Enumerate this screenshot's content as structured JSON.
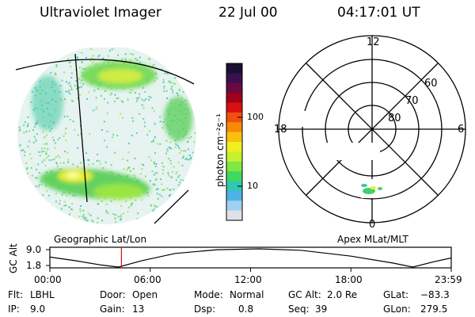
{
  "header": {
    "instrument": "Ultraviolet Imager",
    "date": "22 Jul 00",
    "time": "04:17:01 UT"
  },
  "colorbar": {
    "label": "photon cm⁻²s⁻¹",
    "ticks": [
      "100",
      "10"
    ],
    "colors": [
      "#1a1030",
      "#3a1050",
      "#6a0a40",
      "#a0001a",
      "#d81010",
      "#f05010",
      "#f88a08",
      "#f8c010",
      "#f0f020",
      "#c8f030",
      "#80e840",
      "#40d860",
      "#30c8b0",
      "#50b0e8",
      "#a0d0f0",
      "#e0e0e8"
    ]
  },
  "left_panel": {
    "caption": "Geographic Lat/Lon"
  },
  "right_panel": {
    "caption": "Apex MLat/MLT",
    "mlt_labels": {
      "top": "12",
      "left": "18",
      "right": "6",
      "bottom": "0"
    },
    "lat_labels": [
      "60",
      "70",
      "80"
    ]
  },
  "timeline": {
    "ylabel": "GC Alt",
    "y_ticks": [
      "9.0",
      "1.8"
    ],
    "x_ticks": [
      "00:00",
      "06:00",
      "12:00",
      "18:00",
      "23:59"
    ],
    "current_time_hours": 4.28
  },
  "stats": {
    "filter": {
      "label": "Flt:",
      "value": "LBHL"
    },
    "ip": {
      "label": "IP:",
      "value": "9.0"
    },
    "door": {
      "label": "Door:",
      "value": "Open"
    },
    "gain": {
      "label": "Gain:",
      "value": "13"
    },
    "mode": {
      "label": "Mode:",
      "value": "Normal"
    },
    "dsp": {
      "label": "Dsp:",
      "value": "0.8"
    },
    "gc_alt": {
      "label": "GC Alt:",
      "value": "2.0 Re"
    },
    "seq": {
      "label": "Seq:",
      "value": "39"
    },
    "glat": {
      "label": "GLat:",
      "value": "−83.3"
    },
    "glon": {
      "label": "GLon:",
      "value": "279.5"
    }
  }
}
